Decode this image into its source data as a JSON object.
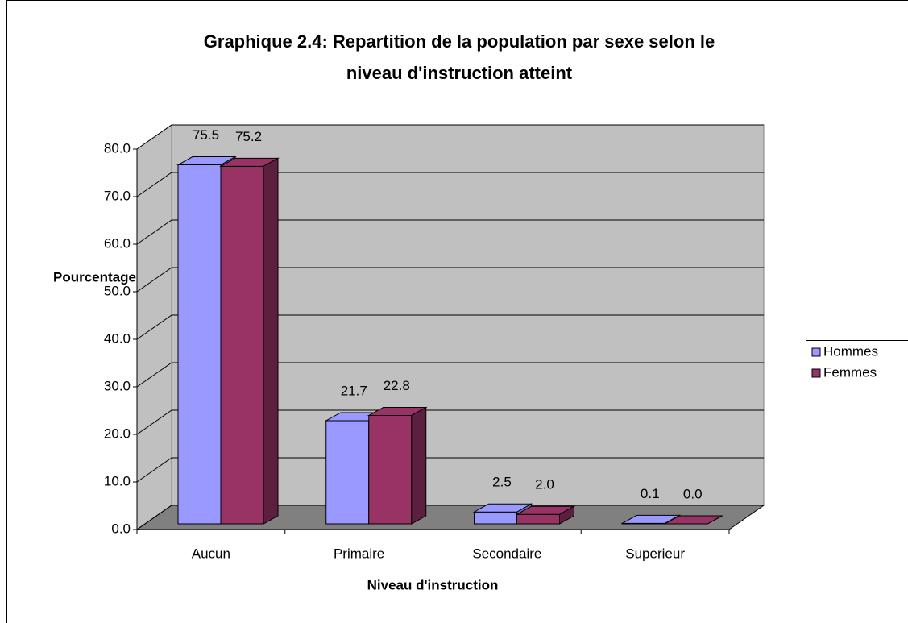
{
  "chart_data": {
    "type": "bar3d",
    "title": "Graphique 2.4: Repartition de la population par sexe selon le",
    "title_line2": "niveau d'instruction atteint",
    "y_label": "Pourcentage",
    "x_label": "Niveau d'instruction",
    "categories": [
      "Aucun",
      "Primaire",
      "Secondaire",
      "Superieur"
    ],
    "series": [
      {
        "name": "Hommes",
        "color": "#9999ff",
        "side": "#6b6bb3",
        "values": [
          75.5,
          21.7,
          2.5,
          0.1
        ],
        "value_labels": [
          "75.5",
          "21.7",
          "2.5",
          "0.1"
        ]
      },
      {
        "name": "Femmes",
        "color": "#993366",
        "side": "#5c1f3d",
        "values": [
          75.2,
          22.8,
          2.0,
          0.0
        ],
        "value_labels": [
          "75.2",
          "22.8",
          "2.0",
          "0.0"
        ]
      }
    ],
    "ylim": [
      0,
      80
    ],
    "yticks": [
      {
        "value": 0,
        "label": "0.0"
      },
      {
        "value": 10,
        "label": "10.0"
      },
      {
        "value": 20,
        "label": "20.0"
      },
      {
        "value": 30,
        "label": "30.0"
      },
      {
        "value": 40,
        "label": "40.0"
      },
      {
        "value": 50,
        "label": "50.0"
      },
      {
        "value": 60,
        "label": "60.0"
      },
      {
        "value": 70,
        "label": "70.0"
      },
      {
        "value": 80,
        "label": "80.0"
      }
    ],
    "grid": true,
    "legend": "right"
  }
}
